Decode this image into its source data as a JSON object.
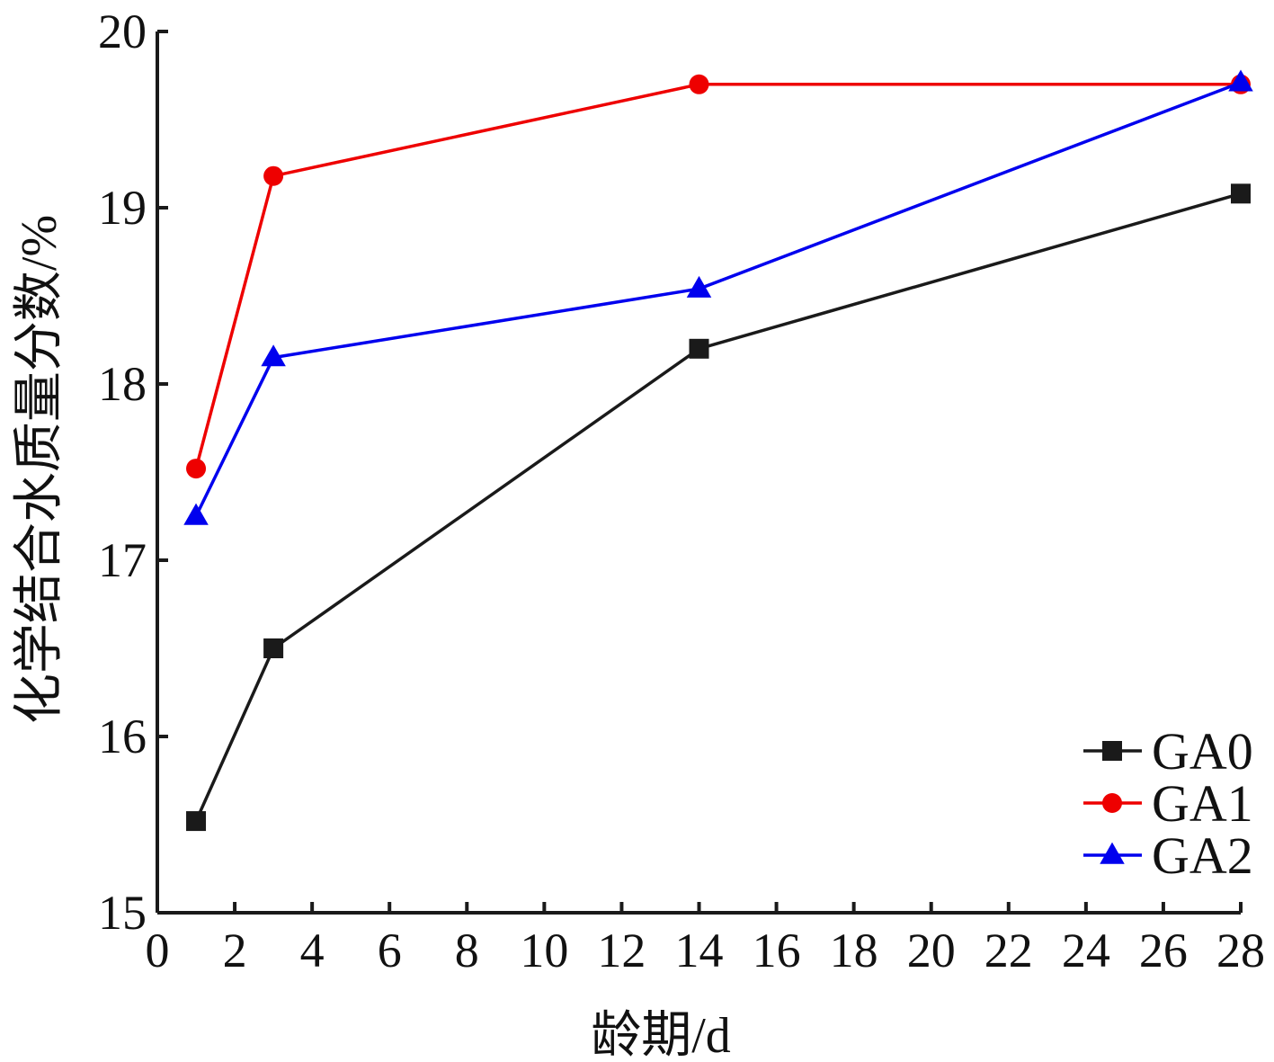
{
  "chart_data": {
    "type": "line",
    "title": "",
    "xlabel": "龄期/d",
    "ylabel": "化学结合水质量分数/%",
    "xlim": [
      0,
      28
    ],
    "ylim": [
      15,
      20
    ],
    "xticks": [
      0,
      2,
      4,
      6,
      8,
      10,
      12,
      14,
      16,
      18,
      20,
      22,
      24,
      26,
      28
    ],
    "yticks": [
      15,
      16,
      17,
      18,
      19,
      20
    ],
    "x": [
      1,
      3,
      14,
      28
    ],
    "grid": false,
    "legend_position": "bottom-right",
    "series": [
      {
        "name": "GA0",
        "values": [
          15.52,
          16.5,
          18.2,
          19.08
        ],
        "color": "#1a1a1a",
        "marker": "square"
      },
      {
        "name": "GA1",
        "values": [
          17.52,
          19.18,
          19.7,
          19.7
        ],
        "color": "#ee0000",
        "marker": "circle"
      },
      {
        "name": "GA2",
        "values": [
          17.25,
          18.15,
          18.54,
          19.71
        ],
        "color": "#0000ee",
        "marker": "triangle"
      }
    ]
  }
}
